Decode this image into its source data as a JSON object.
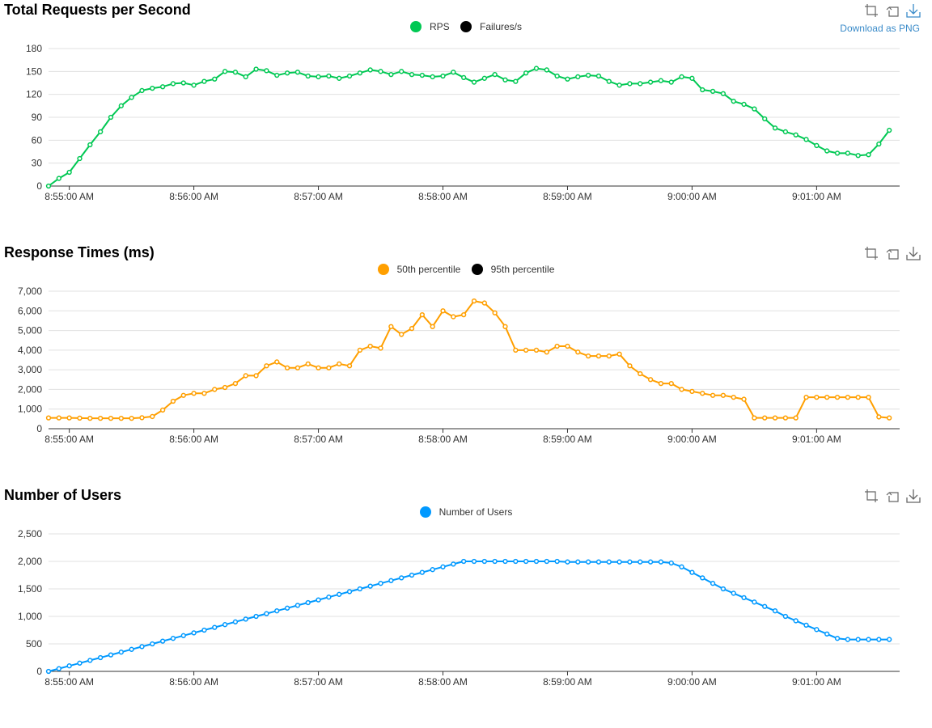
{
  "charts": {
    "download_label": "Download as PNG",
    "x_ticks": [
      "8:55:00 AM",
      "8:56:00 AM",
      "8:57:00 AM",
      "8:58:00 AM",
      "8:59:00 AM",
      "9:00:00 AM",
      "9:01:00 AM"
    ]
  },
  "chart_data": [
    {
      "type": "line",
      "title": "Total Requests per Second",
      "legend": [
        "RPS",
        "Failures/s"
      ],
      "yticks": [
        "0",
        "30",
        "60",
        "90",
        "120",
        "150",
        "180"
      ],
      "ylim": [
        0,
        180
      ],
      "x_range_seconds": [
        -10,
        400
      ],
      "series": [
        {
          "name": "RPS",
          "color": "#00c853",
          "values": [
            0,
            10,
            18,
            36,
            54,
            71,
            90,
            105,
            116,
            125,
            128,
            130,
            134,
            135,
            132,
            137,
            140,
            150,
            149,
            143,
            153,
            151,
            145,
            148,
            149,
            144,
            143,
            144,
            141,
            144,
            148,
            152,
            150,
            146,
            150,
            146,
            145,
            143,
            144,
            149,
            142,
            136,
            141,
            146,
            139,
            137,
            148,
            154,
            152,
            144,
            140,
            143,
            145,
            144,
            137,
            132,
            134,
            134,
            136,
            138,
            136,
            143,
            141,
            126,
            124,
            121,
            111,
            107,
            101,
            88,
            76,
            71,
            67,
            61,
            53,
            46,
            43,
            43,
            40,
            41,
            55,
            73
          ]
        },
        {
          "name": "Failures/s",
          "color": "#000000",
          "values": []
        }
      ]
    },
    {
      "type": "line",
      "title": "Response Times (ms)",
      "legend": [
        "50th percentile",
        "95th percentile"
      ],
      "yticks": [
        "0",
        "1,000",
        "2,000",
        "3,000",
        "4,000",
        "5,000",
        "6,000",
        "7,000"
      ],
      "ylim": [
        0,
        7000
      ],
      "x_range_seconds": [
        -10,
        400
      ],
      "series": [
        {
          "name": "50th percentile",
          "color": "#ff9f00",
          "values": [
            550,
            550,
            550,
            540,
            530,
            530,
            530,
            530,
            530,
            560,
            620,
            950,
            1400,
            1700,
            1800,
            1800,
            2000,
            2100,
            2300,
            2700,
            2700,
            3200,
            3400,
            3100,
            3100,
            3300,
            3100,
            3100,
            3300,
            3200,
            4000,
            4200,
            4100,
            5200,
            4800,
            5100,
            5800,
            5200,
            6000,
            5700,
            5800,
            6500,
            6400,
            5900,
            5200,
            4000,
            4000,
            4000,
            3900,
            4200,
            4200,
            3900,
            3700,
            3700,
            3700,
            3800,
            3200,
            2800,
            2500,
            2300,
            2300,
            2000,
            1900,
            1800,
            1700,
            1700,
            1600,
            1500,
            550,
            550,
            550,
            550,
            550,
            1600,
            1600,
            1600,
            1600,
            1600,
            1600,
            1600,
            600,
            550
          ]
        },
        {
          "name": "95th percentile",
          "color": "#000000",
          "values": []
        }
      ]
    },
    {
      "type": "line",
      "title": "Number of Users",
      "legend": [
        "Number of Users"
      ],
      "yticks": [
        "0",
        "500",
        "1,000",
        "1,500",
        "2,000",
        "2,500"
      ],
      "ylim": [
        0,
        2500
      ],
      "x_range_seconds": [
        -10,
        400
      ],
      "series": [
        {
          "name": "Number of Users",
          "color": "#0099ff",
          "values": [
            0,
            50,
            100,
            150,
            200,
            250,
            300,
            350,
            400,
            450,
            500,
            550,
            600,
            650,
            700,
            750,
            800,
            850,
            900,
            950,
            1000,
            1050,
            1100,
            1150,
            1200,
            1250,
            1300,
            1350,
            1400,
            1450,
            1500,
            1550,
            1600,
            1650,
            1700,
            1750,
            1800,
            1850,
            1900,
            1950,
            2000,
            2000,
            2000,
            2000,
            2000,
            2000,
            2000,
            2000,
            2000,
            2000,
            1990,
            1990,
            1990,
            1990,
            1990,
            1990,
            1990,
            1990,
            1990,
            1990,
            1970,
            1900,
            1800,
            1700,
            1600,
            1500,
            1420,
            1340,
            1260,
            1180,
            1100,
            1000,
            920,
            840,
            760,
            680,
            600,
            580,
            580,
            580,
            580,
            580
          ]
        }
      ]
    }
  ]
}
